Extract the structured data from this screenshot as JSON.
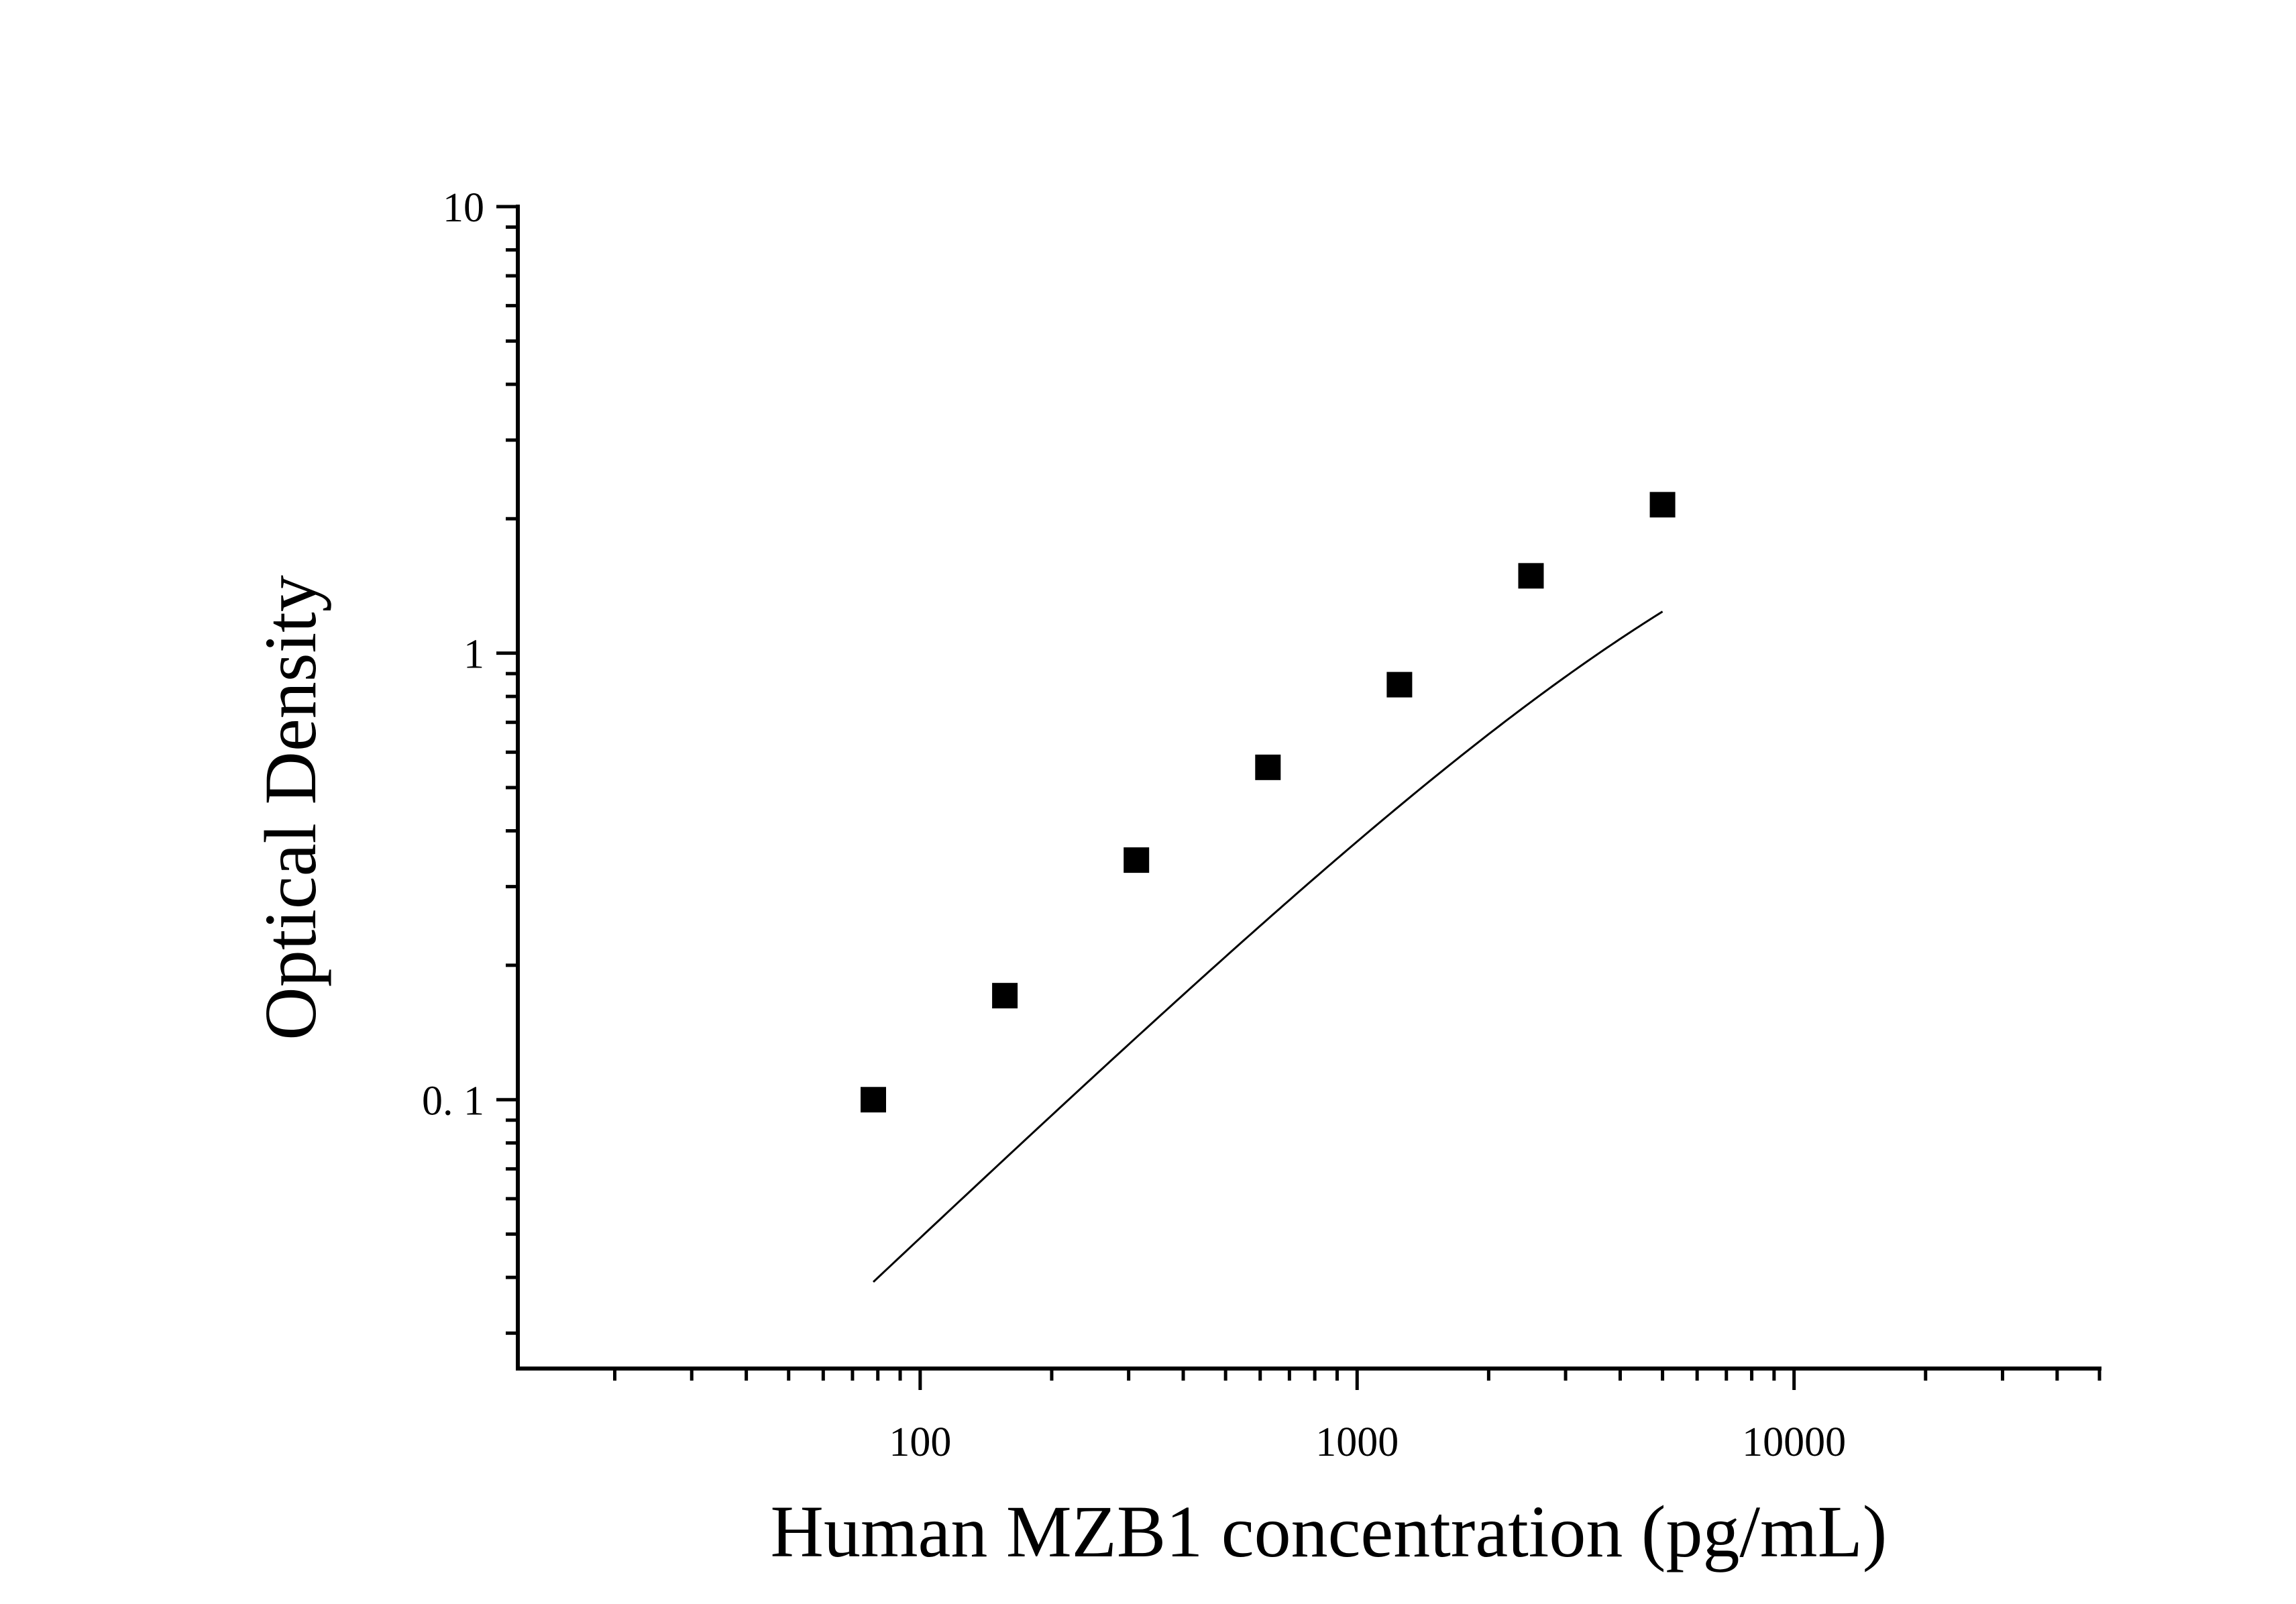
{
  "chart_data": {
    "type": "scatter",
    "title": "",
    "xlabel": "Human MZB1 concentration (pg/mL)",
    "ylabel": "Optical Density",
    "x_scale": "log",
    "y_scale": "log",
    "xlim": [
      12,
      50000
    ],
    "ylim": [
      0.025,
      10
    ],
    "grid": false,
    "legend": "none",
    "x_tick_labels": [
      "100",
      "1000",
      "10000"
    ],
    "y_tick_labels": [
      "10",
      "1",
      "0. 1"
    ],
    "series": [
      {
        "points": [
          {
            "x": 78.125,
            "y": 0.1
          },
          {
            "x": 156.25,
            "y": 0.171
          },
          {
            "x": 312.5,
            "y": 0.344
          },
          {
            "x": 625,
            "y": 0.555
          },
          {
            "x": 1250,
            "y": 0.85
          },
          {
            "x": 2500,
            "y": 1.49
          },
          {
            "x": 5000,
            "y": 2.15
          }
        ]
      }
    ],
    "fit_curve": {
      "type": "4PL",
      "a": 0.0,
      "b": 0.93,
      "c": 10000,
      "d": 3.6
    },
    "colors": {
      "marker": "#000000",
      "line": "#000000",
      "axis": "#000000"
    }
  }
}
